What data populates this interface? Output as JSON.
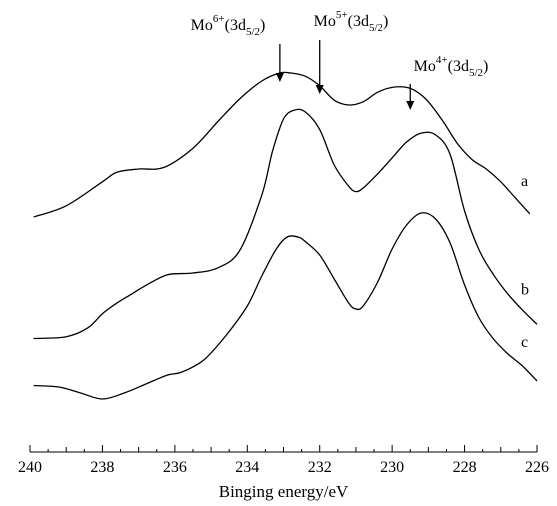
{
  "chart_data": {
    "type": "line",
    "title": "",
    "xlabel": "Binging energy/eV",
    "ylabel": "",
    "xlim": [
      240,
      226
    ],
    "x_reversed": true,
    "y_axis_visible": false,
    "grid": false,
    "xticks": [
      240,
      238,
      236,
      234,
      232,
      230,
      228,
      226
    ],
    "series": [
      {
        "name": "a",
        "x": [
          239.9,
          239.0,
          238.0,
          237.6,
          237.0,
          236.3,
          235.5,
          234.8,
          234.2,
          233.6,
          233.1,
          232.8,
          232.4,
          232.0,
          231.6,
          231.2,
          230.8,
          230.4,
          230.0,
          229.6,
          229.3,
          229.0,
          228.6,
          228.2,
          227.8,
          227.4,
          227.0,
          226.6,
          226.2
        ],
        "y": [
          0.1,
          0.17,
          0.32,
          0.38,
          0.4,
          0.41,
          0.53,
          0.7,
          0.84,
          0.95,
          1.0,
          1.0,
          0.98,
          0.92,
          0.83,
          0.8,
          0.82,
          0.88,
          0.91,
          0.91,
          0.88,
          0.82,
          0.7,
          0.56,
          0.46,
          0.4,
          0.32,
          0.22,
          0.12
        ]
      },
      {
        "name": "b",
        "x": [
          239.9,
          239.0,
          238.4,
          238.0,
          237.6,
          237.2,
          236.8,
          236.2,
          235.5,
          234.8,
          234.2,
          233.6,
          233.3,
          233.0,
          232.7,
          232.4,
          232.0,
          231.6,
          231.2,
          231.0,
          230.8,
          230.4,
          230.0,
          229.6,
          229.2,
          228.8,
          228.4,
          228.0,
          227.6,
          227.2,
          226.8,
          226.4,
          226.0
        ],
        "y": [
          0.02,
          0.03,
          0.08,
          0.16,
          0.22,
          0.27,
          0.32,
          0.38,
          0.39,
          0.42,
          0.52,
          0.83,
          1.08,
          1.26,
          1.31,
          1.3,
          1.2,
          1.0,
          0.88,
          0.85,
          0.87,
          0.95,
          1.04,
          1.13,
          1.18,
          1.17,
          1.06,
          0.74,
          0.52,
          0.38,
          0.27,
          0.18,
          0.1
        ]
      },
      {
        "name": "c",
        "x": [
          239.9,
          239.2,
          238.6,
          238.0,
          237.4,
          236.8,
          236.2,
          235.8,
          235.2,
          234.6,
          234.0,
          233.6,
          233.2,
          232.9,
          232.6,
          232.4,
          232.0,
          231.6,
          231.2,
          231.0,
          230.8,
          230.4,
          230.0,
          229.6,
          229.2,
          228.8,
          228.4,
          228.0,
          227.6,
          227.2,
          226.8,
          226.4,
          226.0
        ],
        "y": [
          0.03,
          0.02,
          -0.02,
          -0.06,
          -0.02,
          0.04,
          0.1,
          0.12,
          0.2,
          0.36,
          0.56,
          0.76,
          0.94,
          1.02,
          1.02,
          0.99,
          0.9,
          0.74,
          0.58,
          0.54,
          0.56,
          0.72,
          0.94,
          1.1,
          1.18,
          1.14,
          0.98,
          0.7,
          0.48,
          0.34,
          0.24,
          0.16,
          0.06
        ]
      }
    ],
    "annotations": [
      {
        "base": "Mo",
        "sup": "6+",
        "paren_open": "(3d",
        "sub": "5/2",
        "paren_close": ")",
        "x": 233.1,
        "series": "a"
      },
      {
        "base": "Mo",
        "sup": "5+",
        "paren_open": "(3d",
        "sub": "5/2",
        "paren_close": ")",
        "x": 232.0,
        "series": "a"
      },
      {
        "base": "Mo",
        "sup": "4+",
        "paren_open": "(3d",
        "sub": "5/2",
        "paren_close": ")",
        "x": 229.5,
        "series": "a"
      }
    ]
  }
}
